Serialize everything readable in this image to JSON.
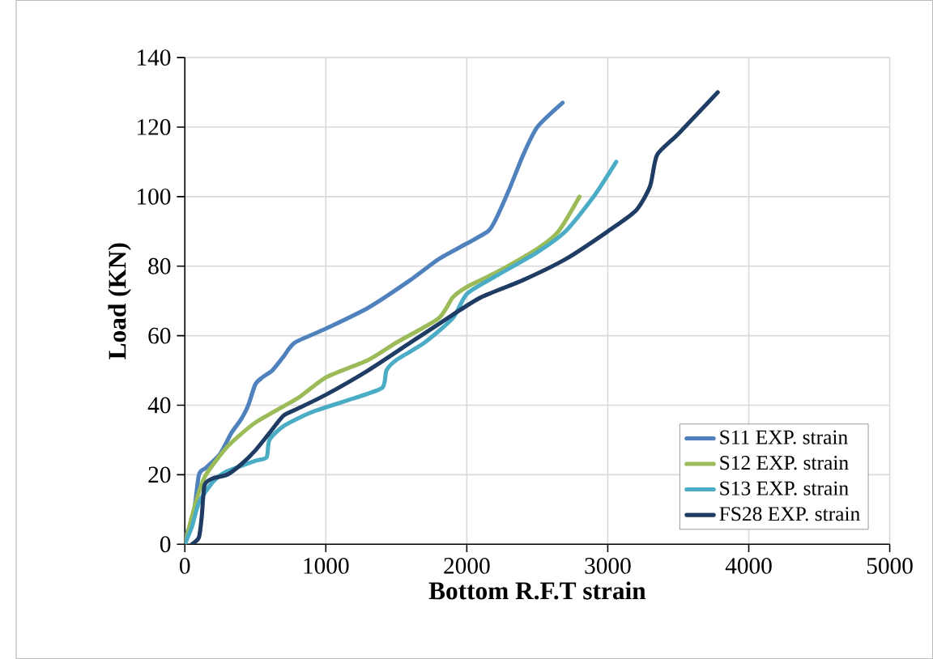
{
  "chart_data": {
    "type": "line",
    "xlabel": "Bottom R.F.T strain",
    "ylabel": "Load (KN)",
    "xlim": [
      0,
      5000
    ],
    "ylim": [
      0,
      140
    ],
    "xticks": [
      0,
      1000,
      2000,
      3000,
      4000,
      5000
    ],
    "yticks": [
      0,
      20,
      40,
      60,
      80,
      100,
      120,
      140
    ],
    "grid": true,
    "legend": "bottom right",
    "line_style": "solid",
    "marker": "none",
    "series": [
      {
        "name": "S11 EXP. strain",
        "color": "#4f81bd",
        "x": [
          0,
          60,
          100,
          150,
          250,
          330,
          400,
          450,
          500,
          550,
          620,
          700,
          780,
          1000,
          1300,
          1600,
          1800,
          2000,
          2150,
          2200,
          2300,
          2400,
          2500,
          2680
        ],
        "values": [
          2,
          8,
          20,
          22,
          26,
          32,
          36,
          40,
          46,
          48,
          50,
          54,
          58,
          62,
          68,
          76,
          82,
          86.5,
          90,
          93,
          102,
          112,
          120,
          127
        ]
      },
      {
        "name": "S12 EXP. strain",
        "color": "#9bbb59",
        "x": [
          0,
          50,
          100,
          150,
          300,
          500,
          800,
          1000,
          1300,
          1500,
          1800,
          1900,
          2000,
          2200,
          2500,
          2650,
          2800
        ],
        "values": [
          0,
          8,
          15,
          20,
          28,
          35,
          42,
          48,
          53,
          58,
          65,
          71,
          74,
          78,
          85,
          90,
          100
        ]
      },
      {
        "name": "S13 EXP. strain",
        "color": "#4bacc6",
        "x": [
          0,
          50,
          100,
          200,
          300,
          500,
          580,
          600,
          700,
          900,
          1200,
          1400,
          1430,
          1500,
          1700,
          1900,
          2000,
          2200,
          2500,
          2700,
          2900,
          3060
        ],
        "values": [
          0,
          5,
          12,
          18,
          21,
          24,
          25,
          30,
          34,
          38,
          42,
          45,
          50,
          53,
          58,
          65,
          72,
          77,
          84,
          90,
          100,
          110
        ]
      },
      {
        "name": "FS28 EXP. strain",
        "color": "#1f3c64",
        "x": [
          50,
          100,
          120,
          140,
          200,
          300,
          400,
          500,
          600,
          700,
          800,
          1000,
          1300,
          1600,
          1900,
          2100,
          2400,
          2700,
          3000,
          3200,
          3300,
          3350,
          3500,
          3780
        ],
        "values": [
          0,
          2,
          8,
          17,
          19,
          20,
          23,
          27,
          32,
          37,
          39,
          43,
          50,
          58,
          66,
          71,
          76,
          82,
          90,
          96,
          103,
          112,
          118,
          130
        ]
      }
    ]
  }
}
